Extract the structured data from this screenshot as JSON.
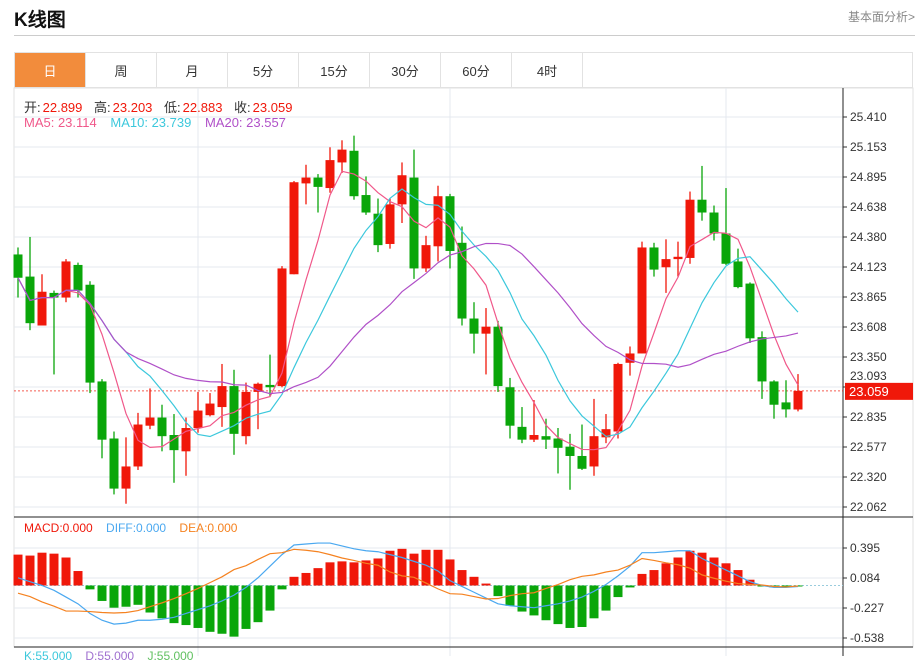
{
  "header": {
    "title": "K线图",
    "link": "基本面分析>"
  },
  "tabs": [
    {
      "label": "日",
      "active": true
    },
    {
      "label": "周"
    },
    {
      "label": "月"
    },
    {
      "label": "5分"
    },
    {
      "label": "15分"
    },
    {
      "label": "30分"
    },
    {
      "label": "60分"
    },
    {
      "label": "4时"
    }
  ],
  "ohlc_info": {
    "open_label": "开:",
    "open": "22.899",
    "high_label": "高:",
    "high": "23.203",
    "low_label": "低:",
    "low": "22.883",
    "close_label": "收:",
    "close": "23.059"
  },
  "ma_info": {
    "ma5": "MA5: 23.114",
    "ma10": "MA10: 23.739",
    "ma20": "MA20: 23.557"
  },
  "macd_info": {
    "macd": "MACD:0.000",
    "diff": "DIFF:0.000",
    "dea": "DEA:0.000"
  },
  "kdj_info": {
    "k": "K:55.000",
    "d": "D:55.000",
    "j": "J:55.000"
  },
  "colors": {
    "up": "#f0180a",
    "down": "#0aa60a",
    "ma5": "#f0588a",
    "ma10": "#3cc8dc",
    "ma20": "#b050c8",
    "diff": "#4aa8f0",
    "dea": "#f58220",
    "accent": "#f28c3c"
  },
  "chart_data": {
    "type": "candlestick",
    "ylim": [
      22.062,
      25.41
    ],
    "y_ticks": [
      "25.410",
      "25.153",
      "24.895",
      "24.638",
      "24.380",
      "24.123",
      "23.865",
      "23.608",
      "23.350",
      "23.093",
      "22.835",
      "22.577",
      "22.320",
      "22.062"
    ],
    "current_price": "23.059",
    "candles": [
      [
        24.23,
        24.29,
        23.86,
        24.03
      ],
      [
        24.04,
        24.38,
        23.58,
        23.64
      ],
      [
        23.62,
        24.06,
        23.62,
        23.91
      ],
      [
        23.9,
        23.92,
        23.2,
        23.86
      ],
      [
        23.86,
        24.19,
        23.82,
        24.17
      ],
      [
        24.14,
        24.16,
        23.86,
        23.92
      ],
      [
        23.97,
        24.0,
        23.04,
        23.13
      ],
      [
        23.14,
        23.16,
        22.48,
        22.64
      ],
      [
        22.65,
        22.71,
        22.17,
        22.22
      ],
      [
        22.22,
        22.66,
        22.09,
        22.41
      ],
      [
        22.41,
        22.87,
        22.38,
        22.77
      ],
      [
        22.76,
        23.08,
        22.73,
        22.83
      ],
      [
        22.83,
        22.94,
        22.54,
        22.67
      ],
      [
        22.68,
        22.86,
        22.27,
        22.55
      ],
      [
        22.54,
        22.83,
        22.33,
        22.74
      ],
      [
        22.74,
        23.05,
        22.7,
        22.89
      ],
      [
        22.85,
        23.04,
        22.84,
        22.95
      ],
      [
        22.92,
        23.29,
        22.75,
        23.1
      ],
      [
        23.1,
        23.24,
        22.51,
        22.69
      ],
      [
        22.67,
        23.13,
        22.6,
        23.05
      ],
      [
        23.05,
        23.13,
        22.73,
        23.12
      ],
      [
        23.11,
        23.37,
        23.01,
        23.09
      ],
      [
        23.1,
        24.13,
        23.09,
        24.11
      ],
      [
        24.06,
        24.86,
        24.06,
        24.85
      ],
      [
        24.84,
        25.0,
        24.66,
        24.89
      ],
      [
        24.89,
        24.92,
        24.59,
        24.81
      ],
      [
        24.8,
        25.15,
        24.76,
        25.04
      ],
      [
        25.02,
        25.21,
        24.93,
        25.13
      ],
      [
        25.12,
        25.25,
        24.7,
        24.73
      ],
      [
        24.74,
        24.9,
        24.57,
        24.59
      ],
      [
        24.58,
        24.71,
        24.25,
        24.31
      ],
      [
        24.32,
        24.71,
        24.28,
        24.66
      ],
      [
        24.66,
        25.02,
        24.5,
        24.91
      ],
      [
        24.89,
        25.13,
        24.02,
        24.11
      ],
      [
        24.11,
        24.39,
        24.08,
        24.31
      ],
      [
        24.3,
        24.82,
        24.17,
        24.73
      ],
      [
        24.73,
        24.75,
        24.11,
        24.26
      ],
      [
        24.33,
        24.47,
        23.62,
        23.68
      ],
      [
        23.68,
        23.82,
        23.38,
        23.55
      ],
      [
        23.55,
        23.77,
        23.2,
        23.61
      ],
      [
        23.61,
        23.66,
        23.05,
        23.1
      ],
      [
        23.09,
        23.17,
        22.65,
        22.76
      ],
      [
        22.75,
        22.92,
        22.61,
        22.64
      ],
      [
        22.64,
        22.98,
        22.62,
        22.68
      ],
      [
        22.67,
        22.82,
        22.56,
        22.64
      ],
      [
        22.65,
        22.74,
        22.35,
        22.57
      ],
      [
        22.58,
        22.69,
        22.21,
        22.5
      ],
      [
        22.5,
        22.77,
        22.38,
        22.39
      ],
      [
        22.41,
        22.99,
        22.33,
        22.67
      ],
      [
        22.66,
        22.86,
        22.61,
        22.73
      ],
      [
        22.71,
        23.3,
        22.65,
        23.29
      ],
      [
        23.3,
        23.44,
        23.19,
        23.38
      ],
      [
        23.38,
        24.34,
        23.38,
        24.29
      ],
      [
        24.29,
        24.33,
        24.04,
        24.1
      ],
      [
        24.12,
        24.36,
        23.9,
        24.19
      ],
      [
        24.19,
        24.34,
        24.04,
        24.21
      ],
      [
        24.2,
        24.77,
        24.15,
        24.7
      ],
      [
        24.7,
        24.99,
        24.52,
        24.59
      ],
      [
        24.59,
        24.65,
        24.35,
        24.41
      ],
      [
        24.41,
        24.8,
        24.14,
        24.15
      ],
      [
        24.17,
        24.28,
        23.94,
        23.95
      ],
      [
        23.98,
        23.99,
        23.47,
        23.51
      ],
      [
        23.52,
        23.57,
        22.99,
        23.14
      ],
      [
        23.14,
        23.15,
        22.82,
        22.94
      ],
      [
        22.96,
        23.15,
        22.83,
        22.9
      ],
      [
        22.899,
        23.203,
        22.883,
        23.059
      ]
    ],
    "macd": {
      "ylim": [
        -0.6,
        0.45
      ],
      "y_ticks": [
        "0.395",
        "0.084",
        "-0.227",
        "-0.538"
      ],
      "hist": [
        0.32,
        0.31,
        0.34,
        0.33,
        0.29,
        0.15,
        -0.04,
        -0.16,
        -0.23,
        -0.22,
        -0.2,
        -0.28,
        -0.34,
        -0.39,
        -0.41,
        -0.44,
        -0.48,
        -0.5,
        -0.53,
        -0.45,
        -0.38,
        -0.26,
        -0.04,
        0.09,
        0.13,
        0.18,
        0.24,
        0.25,
        0.24,
        0.26,
        0.28,
        0.36,
        0.38,
        0.33,
        0.37,
        0.37,
        0.27,
        0.16,
        0.09,
        0.02,
        -0.11,
        -0.21,
        -0.27,
        -0.31,
        -0.36,
        -0.4,
        -0.44,
        -0.43,
        -0.34,
        -0.26,
        -0.12,
        -0.02,
        0.12,
        0.16,
        0.23,
        0.29,
        0.36,
        0.34,
        0.29,
        0.23,
        0.16,
        0.06,
        -0.01,
        -0.02,
        -0.01,
        -0.01
      ],
      "diff": [
        0.08,
        0.04,
        0.0,
        -0.05,
        -0.12,
        -0.19,
        -0.29,
        -0.36,
        -0.4,
        -0.39,
        -0.36,
        -0.36,
        -0.35,
        -0.33,
        -0.29,
        -0.25,
        -0.21,
        -0.16,
        -0.1,
        -0.02,
        0.08,
        0.2,
        0.32,
        0.42,
        0.43,
        0.44,
        0.44,
        0.41,
        0.38,
        0.36,
        0.35,
        0.32,
        0.29,
        0.25,
        0.21,
        0.15,
        0.05,
        -0.01,
        -0.07,
        -0.13,
        -0.19,
        -0.21,
        -0.22,
        -0.23,
        -0.21,
        -0.19,
        -0.16,
        -0.12,
        -0.06,
        0.01,
        0.1,
        0.2,
        0.34,
        0.34,
        0.35,
        0.36,
        0.36,
        0.28,
        0.22,
        0.16,
        0.1,
        0.04,
        0.0,
        -0.02,
        -0.02,
        -0.01
      ]
    }
  }
}
